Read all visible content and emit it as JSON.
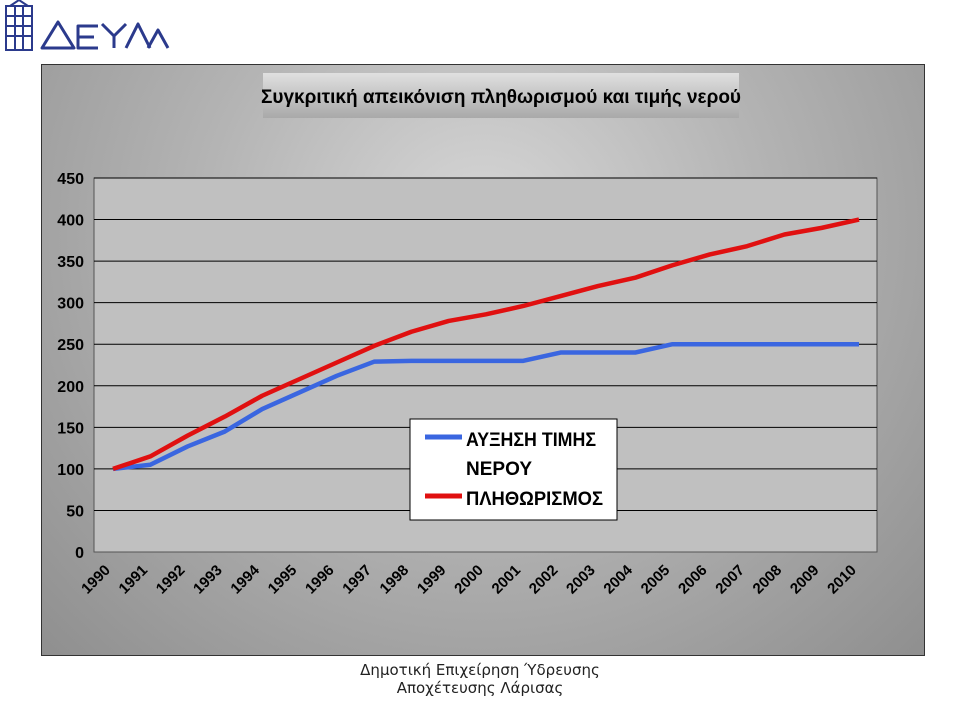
{
  "org_logo": {
    "text": "ΔΕΥΑΛ",
    "color": "#2b3a8c"
  },
  "footer": {
    "line1": "Δημοτική Επιχείρηση Ύδρευσης",
    "line2": "Αποχέτευσης Λάρισας"
  },
  "chart_data": {
    "type": "line",
    "title": "Συγκριτική απεικόνιση πληθωρισμού και τιμής νερού",
    "categories": [
      "1990",
      "1991",
      "1992",
      "1993",
      "1994",
      "1995",
      "1996",
      "1997",
      "1998",
      "1999",
      "2000",
      "2001",
      "2002",
      "2003",
      "2004",
      "2005",
      "2006",
      "2007",
      "2008",
      "2009",
      "2010"
    ],
    "ylim": [
      0,
      450
    ],
    "yticks": [
      0,
      50,
      100,
      150,
      200,
      250,
      300,
      350,
      400,
      450
    ],
    "grid": true,
    "legend_position": "center-right",
    "series": [
      {
        "name": "ΑΥΞΗΣΗ ΤΙΜΗΣ ΝΕΡΟΥ",
        "color": "#3a66e0",
        "values": [
          100,
          105,
          127,
          145,
          172,
          192,
          212,
          229,
          230,
          230,
          230,
          230,
          240,
          240,
          240,
          250,
          250,
          250,
          250,
          250,
          250
        ]
      },
      {
        "name": "ΠΛΗΘΩΡΙΣΜΟΣ",
        "color": "#e01010",
        "values": [
          100,
          115,
          140,
          163,
          188,
          208,
          228,
          248,
          265,
          278,
          286,
          296,
          308,
          320,
          330,
          345,
          358,
          368,
          382,
          390,
          400
        ]
      }
    ]
  }
}
